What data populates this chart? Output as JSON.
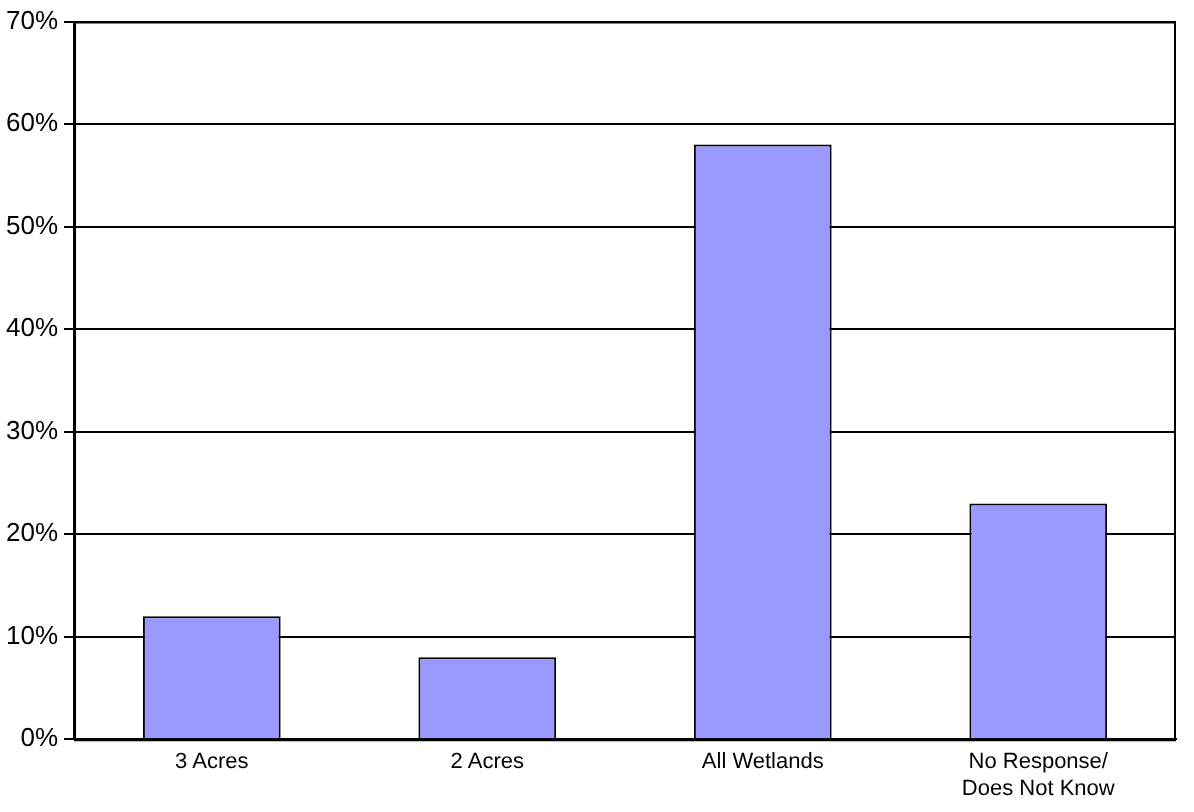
{
  "chart_data": {
    "type": "bar",
    "categories": [
      "3 Acres",
      "2 Acres",
      "All Wetlands",
      "No Response/\nDoes Not Know"
    ],
    "values": [
      12,
      8,
      58,
      23
    ],
    "color": "#9999ff",
    "ylim": [
      0,
      70
    ],
    "yticks": [
      {
        "value": 0,
        "label": "0%"
      },
      {
        "value": 10,
        "label": "10%"
      },
      {
        "value": 20,
        "label": "20%"
      },
      {
        "value": 30,
        "label": "30%"
      },
      {
        "value": 40,
        "label": "40%"
      },
      {
        "value": 50,
        "label": "50%"
      },
      {
        "value": 60,
        "label": "60%"
      },
      {
        "value": 70,
        "label": "70%"
      }
    ],
    "grid": "y"
  }
}
